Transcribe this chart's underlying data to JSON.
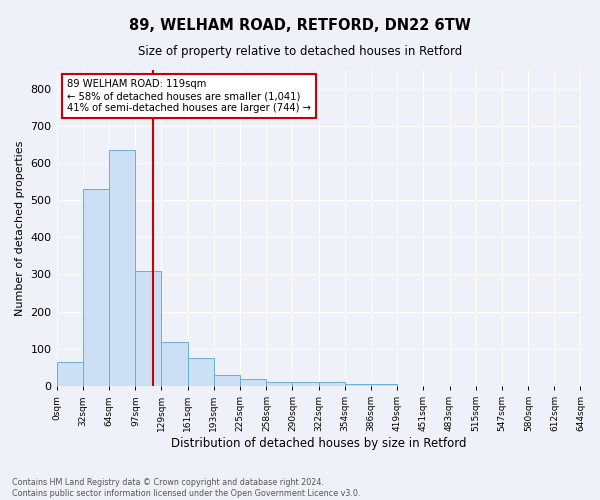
{
  "title1": "89, WELHAM ROAD, RETFORD, DN22 6TW",
  "title2": "Size of property relative to detached houses in Retford",
  "xlabel": "Distribution of detached houses by size in Retford",
  "ylabel": "Number of detached properties",
  "annotation_line": "89 WELHAM ROAD: 119sqm",
  "annotation_line2": "← 58% of detached houses are smaller (1,041)",
  "annotation_line3": "41% of semi-detached houses are larger (744) →",
  "footer1": "Contains HM Land Registry data © Crown copyright and database right 2024.",
  "footer2": "Contains public sector information licensed under the Open Government Licence v3.0.",
  "property_size": 119,
  "bar_edges": [
    0,
    32,
    64,
    97,
    129,
    161,
    193,
    225,
    258,
    290,
    322,
    354,
    386,
    419,
    451,
    483,
    515,
    547,
    580,
    612,
    644
  ],
  "bar_heights": [
    65,
    530,
    635,
    310,
    118,
    75,
    30,
    18,
    10,
    10,
    10,
    5,
    5,
    0,
    0,
    0,
    0,
    0,
    0,
    0
  ],
  "bar_color": "#cce0f5",
  "bar_edge_color": "#6baed6",
  "vline_color": "#cc0000",
  "vline_x": 119,
  "ylim": [
    0,
    850
  ],
  "yticks": [
    0,
    100,
    200,
    300,
    400,
    500,
    600,
    700,
    800
  ],
  "background_color": "#eef2f8",
  "annotation_box_color": "#ffffff",
  "annotation_box_edge": "#cc0000",
  "grid_color": "#ffffff",
  "tick_labels": [
    "0sqm",
    "32sqm",
    "64sqm",
    "97sqm",
    "129sqm",
    "161sqm",
    "193sqm",
    "225sqm",
    "258sqm",
    "290sqm",
    "322sqm",
    "354sqm",
    "386sqm",
    "419sqm",
    "451sqm",
    "483sqm",
    "515sqm",
    "547sqm",
    "580sqm",
    "612sqm",
    "644sqm"
  ]
}
